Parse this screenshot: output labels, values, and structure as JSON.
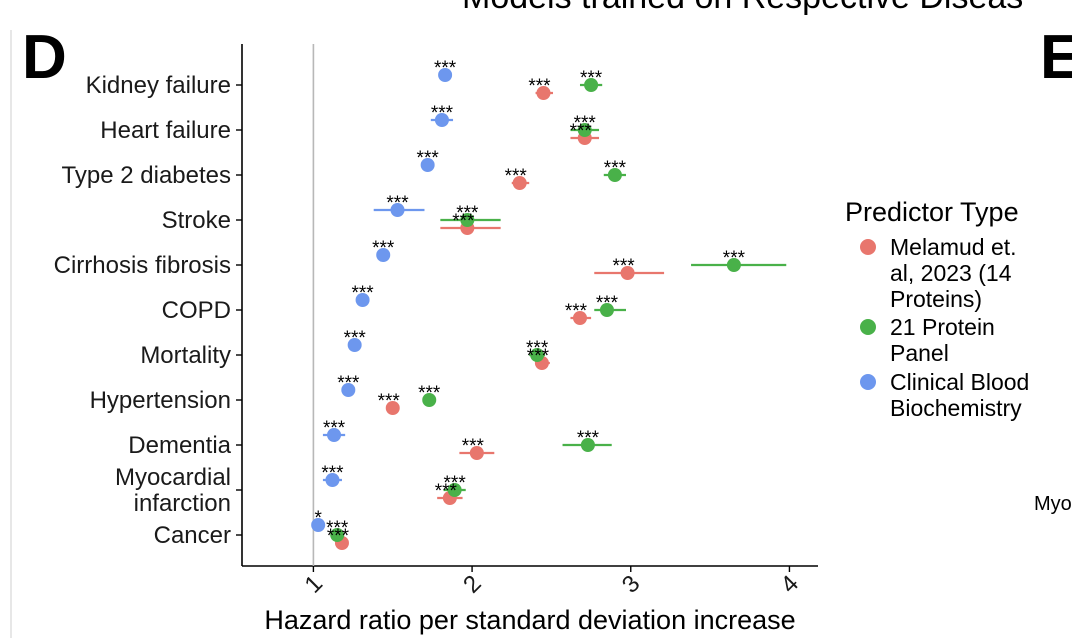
{
  "header": {
    "title": "Models trained on Respective Diseas",
    "next_panel_letter": "E",
    "edge_label": "Myo"
  },
  "panel_letter": "D",
  "colors": {
    "melamud": "#e8766d",
    "protein21": "#49b149",
    "clinical": "#6d97ee",
    "axis": "#000000",
    "refline": "#b8b8b8"
  },
  "legend": {
    "title": "Predictor Type",
    "items": [
      {
        "key": "melamud",
        "lines": [
          "Melamud et.",
          "al, 2023 (14",
          "Proteins)"
        ]
      },
      {
        "key": "protein21",
        "lines": [
          "21 Protein",
          "Panel"
        ]
      },
      {
        "key": "clinical",
        "lines": [
          "Clinical Blood",
          "Biochemistry"
        ]
      }
    ]
  },
  "chart_data": {
    "type": "scatter",
    "subtype": "forest-plot",
    "xlabel": "Hazard ratio per standard deviation increase",
    "xlim": [
      0.55,
      4.18
    ],
    "xticks": [
      1,
      2,
      3,
      4
    ],
    "xtick_labels": [
      "1",
      "2",
      "3",
      "4"
    ],
    "reference_line": 1,
    "categories": [
      {
        "lines": [
          "Kidney failure"
        ]
      },
      {
        "lines": [
          "Heart failure"
        ]
      },
      {
        "lines": [
          "Type 2 diabetes"
        ]
      },
      {
        "lines": [
          "Stroke"
        ]
      },
      {
        "lines": [
          "Cirrhosis fibrosis"
        ]
      },
      {
        "lines": [
          "COPD"
        ]
      },
      {
        "lines": [
          "Mortality"
        ]
      },
      {
        "lines": [
          "Hypertension"
        ]
      },
      {
        "lines": [
          "Dementia"
        ]
      },
      {
        "lines": [
          "Myocardial",
          "infarction"
        ]
      },
      {
        "lines": [
          "Cancer"
        ]
      }
    ],
    "series": [
      {
        "name": "Melamud et. al, 2023 (14 Proteins)",
        "key": "melamud",
        "points": [
          {
            "cat": 0,
            "hr": 2.45,
            "lo": 2.4,
            "hi": 2.51,
            "sig": "***"
          },
          {
            "cat": 1,
            "hr": 2.71,
            "lo": 2.62,
            "hi": 2.8,
            "sig": "***"
          },
          {
            "cat": 2,
            "hr": 2.3,
            "lo": 2.25,
            "hi": 2.36,
            "sig": "***"
          },
          {
            "cat": 3,
            "hr": 1.97,
            "lo": 1.8,
            "hi": 2.18,
            "sig": "***"
          },
          {
            "cat": 4,
            "hr": 2.98,
            "lo": 2.77,
            "hi": 3.21,
            "sig": "***"
          },
          {
            "cat": 5,
            "hr": 2.68,
            "lo": 2.62,
            "hi": 2.75,
            "sig": "***"
          },
          {
            "cat": 6,
            "hr": 2.44,
            "lo": 2.4,
            "hi": 2.49,
            "sig": "***"
          },
          {
            "cat": 7,
            "hr": 1.5,
            "lo": 1.47,
            "hi": 1.53,
            "sig": "***"
          },
          {
            "cat": 8,
            "hr": 2.03,
            "lo": 1.92,
            "hi": 2.14,
            "sig": "***"
          },
          {
            "cat": 9,
            "hr": 1.86,
            "lo": 1.78,
            "hi": 1.94,
            "sig": "***"
          },
          {
            "cat": 10,
            "hr": 1.18,
            "lo": 1.15,
            "hi": 1.21,
            "sig": "***"
          }
        ]
      },
      {
        "name": "21 Protein Panel",
        "key": "protein21",
        "points": [
          {
            "cat": 0,
            "hr": 2.75,
            "lo": 2.68,
            "hi": 2.82,
            "sig": "***"
          },
          {
            "cat": 1,
            "hr": 2.71,
            "lo": 2.62,
            "hi": 2.8,
            "sig": "***"
          },
          {
            "cat": 2,
            "hr": 2.9,
            "lo": 2.83,
            "hi": 2.97,
            "sig": "***"
          },
          {
            "cat": 3,
            "hr": 1.97,
            "lo": 1.8,
            "hi": 2.18,
            "sig": "***"
          },
          {
            "cat": 4,
            "hr": 3.65,
            "lo": 3.38,
            "hi": 3.98,
            "sig": "***"
          },
          {
            "cat": 5,
            "hr": 2.85,
            "lo": 2.77,
            "hi": 2.97,
            "sig": "***"
          },
          {
            "cat": 6,
            "hr": 2.41,
            "lo": 2.36,
            "hi": 2.46,
            "sig": "***"
          },
          {
            "cat": 7,
            "hr": 1.73,
            "lo": 1.69,
            "hi": 1.77,
            "sig": "***"
          },
          {
            "cat": 8,
            "hr": 2.73,
            "lo": 2.57,
            "hi": 2.88,
            "sig": "***"
          },
          {
            "cat": 9,
            "hr": 1.89,
            "lo": 1.82,
            "hi": 1.96,
            "sig": "***"
          },
          {
            "cat": 10,
            "hr": 1.15,
            "lo": 1.12,
            "hi": 1.18,
            "sig": "***"
          }
        ]
      },
      {
        "name": "Clinical Blood Biochemistry",
        "key": "clinical",
        "points": [
          {
            "cat": 0,
            "hr": 1.83,
            "lo": 1.79,
            "hi": 1.87,
            "sig": "***"
          },
          {
            "cat": 1,
            "hr": 1.81,
            "lo": 1.74,
            "hi": 1.88,
            "sig": "***"
          },
          {
            "cat": 2,
            "hr": 1.72,
            "lo": 1.69,
            "hi": 1.75,
            "sig": "***"
          },
          {
            "cat": 3,
            "hr": 1.53,
            "lo": 1.38,
            "hi": 1.7,
            "sig": "***"
          },
          {
            "cat": 4,
            "hr": 1.44,
            "lo": 1.4,
            "hi": 1.48,
            "sig": "***"
          },
          {
            "cat": 5,
            "hr": 1.31,
            "lo": 1.27,
            "hi": 1.35,
            "sig": "***"
          },
          {
            "cat": 6,
            "hr": 1.26,
            "lo": 1.23,
            "hi": 1.29,
            "sig": "***"
          },
          {
            "cat": 7,
            "hr": 1.22,
            "lo": 1.18,
            "hi": 1.26,
            "sig": "***"
          },
          {
            "cat": 8,
            "hr": 1.13,
            "lo": 1.06,
            "hi": 1.2,
            "sig": "***"
          },
          {
            "cat": 9,
            "hr": 1.12,
            "lo": 1.06,
            "hi": 1.18,
            "sig": "***"
          },
          {
            "cat": 10,
            "hr": 1.03,
            "lo": 1.0,
            "hi": 1.06,
            "sig": "*"
          }
        ]
      }
    ]
  }
}
